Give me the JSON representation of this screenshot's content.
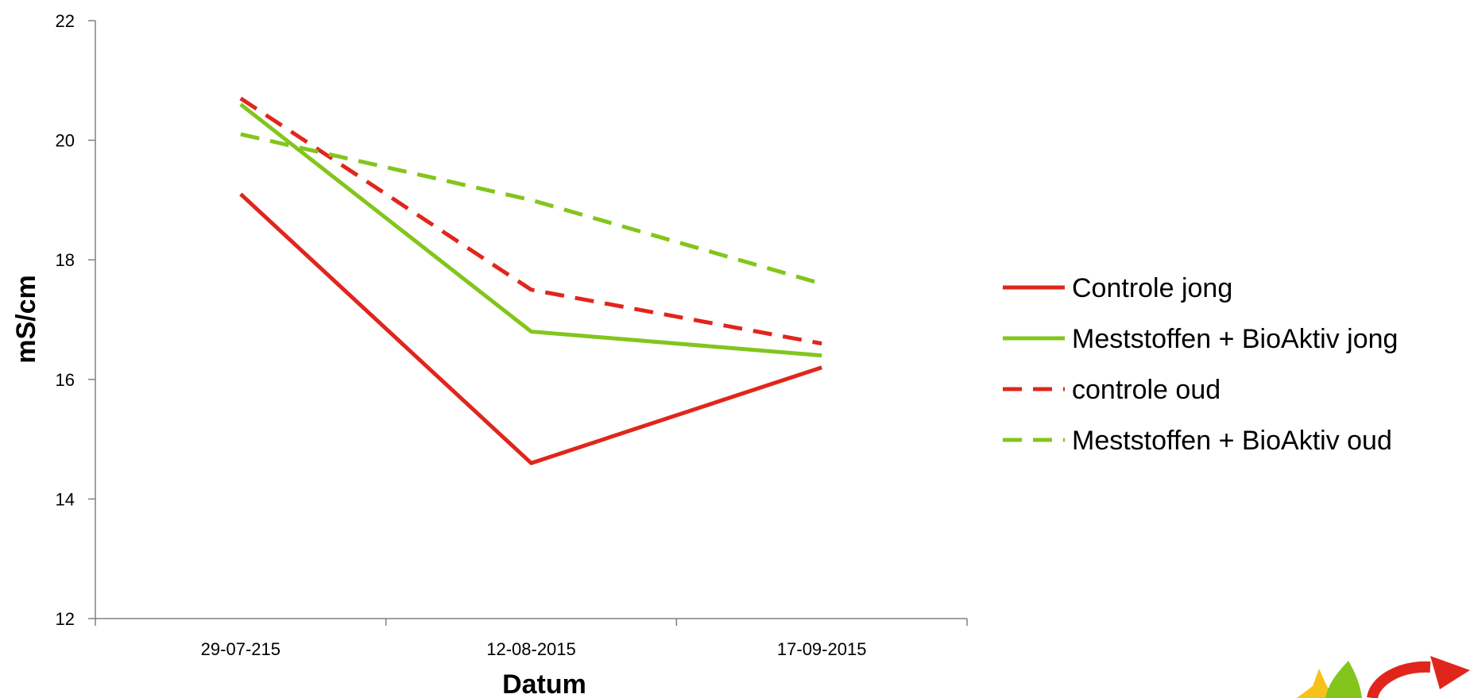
{
  "chart_data": {
    "type": "line",
    "title": "",
    "xlabel": "Datum",
    "ylabel": "mS/cm",
    "categories": [
      "29-07-215",
      "12-08-2015",
      "17-09-2015"
    ],
    "ylim": [
      12,
      22
    ],
    "yticks": [
      12,
      14,
      16,
      18,
      20,
      22
    ],
    "grid": false,
    "legend_position": "right",
    "series": [
      {
        "name": "Controle jong",
        "values": [
          19.1,
          14.6,
          16.2
        ],
        "color": "#e0261c",
        "dashed": false
      },
      {
        "name": "Meststoffen + BioAktiv jong",
        "values": [
          20.6,
          16.8,
          16.4
        ],
        "color": "#83c51d",
        "dashed": false
      },
      {
        "name": "controle oud",
        "values": [
          20.7,
          17.5,
          16.6
        ],
        "color": "#e0261c",
        "dashed": true
      },
      {
        "name": "Meststoffen + BioAktiv oud",
        "values": [
          20.1,
          19.0,
          17.6
        ],
        "color": "#83c51d",
        "dashed": true
      }
    ]
  },
  "logo": {
    "name": "company-logo"
  }
}
